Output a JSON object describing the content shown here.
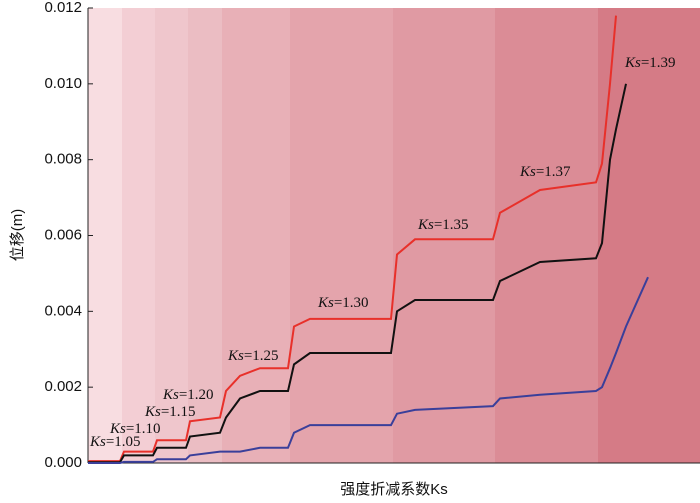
{
  "chart_data": {
    "type": "line",
    "ylabel": "位移(m)",
    "xlabel": "强度折减系数Ks",
    "x": [
      0,
      32,
      36,
      65,
      69,
      98,
      102,
      132,
      138,
      152,
      172,
      200,
      206,
      222,
      303,
      309,
      327,
      405,
      412,
      452,
      508,
      514,
      522,
      528,
      538,
      560
    ],
    "xlim": [
      0,
      612
    ],
    "ylim": [
      0,
      0.012
    ],
    "yticks": [
      {
        "value": 0,
        "label": "0.000"
      },
      {
        "value": 0.002,
        "label": "0.002"
      },
      {
        "value": 0.004,
        "label": "0.004"
      },
      {
        "value": 0.006,
        "label": "0.006"
      },
      {
        "value": 0.008,
        "label": "0.008"
      },
      {
        "value": 0.01,
        "label": "0.010"
      },
      {
        "value": 0.012,
        "label": "0.012"
      }
    ],
    "series": [
      {
        "color": "#e8302a",
        "values": [
          5e-05,
          5e-05,
          0.0003,
          0.0003,
          0.0006,
          0.0006,
          0.0011,
          0.0012,
          0.0019,
          0.0023,
          0.0025,
          0.0025,
          0.0036,
          0.0038,
          0.0038,
          0.0055,
          0.0059,
          0.0059,
          0.0066,
          0.0072,
          0.0074,
          0.0079,
          0.01,
          0.0118,
          null,
          null
        ]
      },
      {
        "color": "#111111",
        "values": [
          2e-05,
          2e-05,
          0.0002,
          0.0002,
          0.0004,
          0.0004,
          0.0007,
          0.0008,
          0.0012,
          0.0017,
          0.0019,
          0.0019,
          0.0026,
          0.0029,
          0.0029,
          0.004,
          0.0043,
          0.0043,
          0.0048,
          0.0053,
          0.0054,
          0.0058,
          0.008,
          0.0088,
          0.01,
          null
        ]
      },
      {
        "color": "#3a3f9a",
        "values": [
          0,
          0,
          3e-05,
          3e-05,
          0.0001,
          0.0001,
          0.0002,
          0.0003,
          0.0003,
          0.0003,
          0.0004,
          0.0004,
          0.0008,
          0.001,
          0.001,
          0.0013,
          0.0014,
          0.0015,
          0.0017,
          0.0018,
          0.0019,
          0.002,
          0.0025,
          0.0029,
          0.0036,
          0.0049
        ]
      }
    ],
    "annotations": [
      "Ks=1.05",
      "Ks=1.10",
      "Ks=1.15",
      "Ks=1.20",
      "Ks=1.25",
      "Ks=1.30",
      "Ks=1.35",
      "Ks=1.37",
      "Ks=1.39"
    ]
  }
}
